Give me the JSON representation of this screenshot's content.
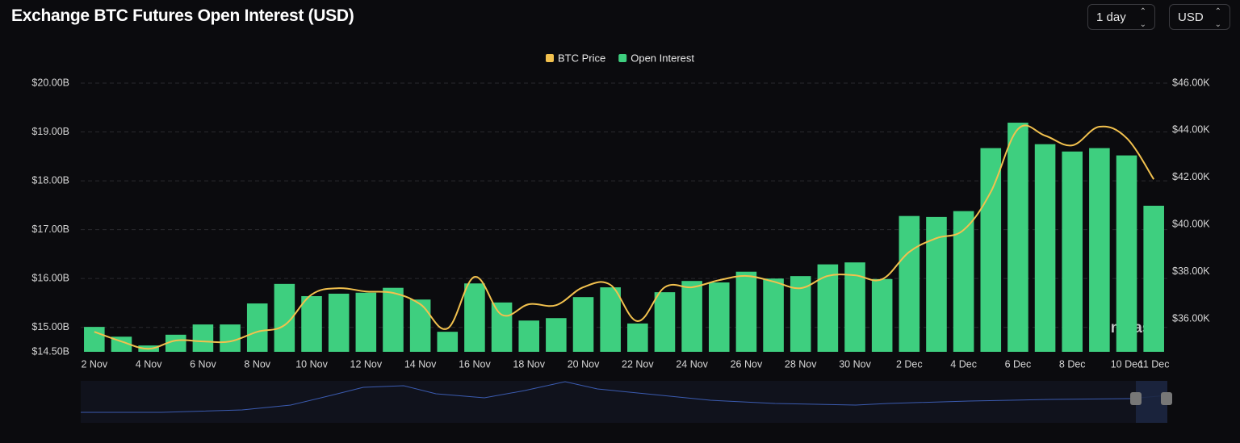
{
  "header": {
    "title": "Exchange BTC Futures Open Interest (USD)",
    "controls": [
      "1 day",
      "USD"
    ]
  },
  "chart_data": {
    "type": "bar",
    "categories": [
      "2 Nov",
      null,
      "4 Nov",
      null,
      "6 Nov",
      null,
      "8 Nov",
      null,
      "10 Nov",
      null,
      "12 Nov",
      null,
      "14 Nov",
      null,
      "16 Nov",
      null,
      "18 Nov",
      null,
      "20 Nov",
      null,
      "22 Nov",
      null,
      "24 Nov",
      null,
      "26 Nov",
      null,
      "28 Nov",
      null,
      "30 Nov",
      null,
      "2 Dec",
      null,
      "4 Dec",
      null,
      "6 Dec",
      null,
      "8 Dec",
      null,
      "10 Dec",
      "11 Dec"
    ],
    "series": [
      {
        "name": "BTC Price",
        "type": "line",
        "axis": "y2",
        "color": "#f2c14e",
        "values": [
          35.45,
          35.04,
          34.73,
          35.08,
          35.04,
          35.04,
          35.45,
          35.73,
          37.03,
          37.3,
          37.16,
          37.1,
          36.62,
          35.59,
          37.78,
          36.17,
          36.62,
          36.58,
          37.34,
          37.44,
          35.9,
          37.34,
          37.34,
          37.64,
          37.82,
          37.58,
          37.3,
          37.82,
          37.85,
          37.68,
          38.84,
          39.42,
          39.77,
          41.38,
          44.05,
          43.77,
          43.36,
          44.15,
          43.67,
          41.92
        ]
      },
      {
        "name": "Open Interest",
        "type": "bar",
        "color": "#3ecf7f",
        "values": [
          15.01,
          14.81,
          14.63,
          14.85,
          15.06,
          15.06,
          15.49,
          15.89,
          15.64,
          15.69,
          15.71,
          15.81,
          15.57,
          14.91,
          15.9,
          15.51,
          15.14,
          15.19,
          15.62,
          15.82,
          15.08,
          15.72,
          15.95,
          15.92,
          16.14,
          16.0,
          16.05,
          16.29,
          16.33,
          15.99,
          17.28,
          17.26,
          17.38,
          18.67,
          19.19,
          18.75,
          18.6,
          18.67,
          18.52,
          17.49
        ]
      }
    ],
    "ylim": [
      14.5,
      20
    ],
    "yticks": [
      {
        "value": 14.5,
        "label": "$14.50B"
      },
      {
        "value": 15,
        "label": "$15.00B"
      },
      {
        "value": 16,
        "label": "$16.00B"
      },
      {
        "value": 17,
        "label": "$17.00B"
      },
      {
        "value": 18,
        "label": "$18.00B"
      },
      {
        "value": 19,
        "label": "$19.00B"
      },
      {
        "value": 20,
        "label": "$20.00B"
      }
    ],
    "y2lim": [
      34.6,
      46
    ],
    "y2ticks": [
      {
        "value": 36,
        "label": "$36.00K"
      },
      {
        "value": 38,
        "label": "$38.00K"
      },
      {
        "value": 40,
        "label": "$40.00K"
      },
      {
        "value": 42,
        "label": "$42.00K"
      },
      {
        "value": 44,
        "label": "$44.00K"
      },
      {
        "value": 46,
        "label": "$46.00K"
      }
    ],
    "grid": true,
    "legend": "top",
    "watermark": "coinglass"
  }
}
